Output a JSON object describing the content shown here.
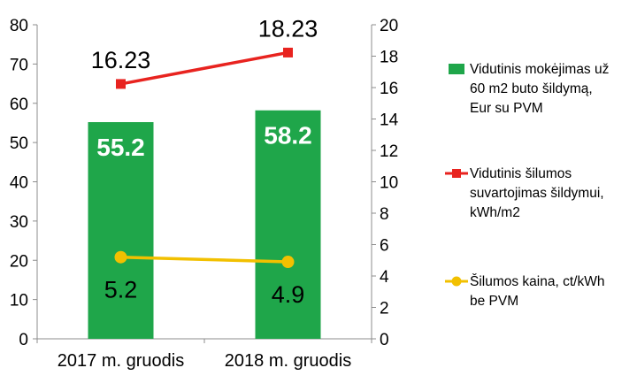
{
  "chart_data": {
    "type": "bar",
    "categories": [
      "2017 m. gruodis",
      "2018 m. gruodis"
    ],
    "series": [
      {
        "name": "Vidutinis mokėjimas už 60 m2 buto šildymą, Eur su PVM",
        "type": "bar",
        "axis": "left",
        "color": "#1fa64a",
        "values": [
          55.2,
          58.2
        ],
        "labels": [
          "55.2",
          "58.2"
        ]
      },
      {
        "name": "Vidutinis šilumos suvartojimas šildymui, kWh/m2",
        "type": "line",
        "axis": "right",
        "color": "#e8231f",
        "marker": "square",
        "values": [
          16.23,
          18.23
        ],
        "labels": [
          "16.23",
          "18.23"
        ]
      },
      {
        "name": "Šilumos kaina, ct/kWh be PVM",
        "type": "line",
        "axis": "right",
        "color": "#f2c000",
        "marker": "circle",
        "values": [
          5.2,
          4.9
        ],
        "labels": [
          "5.2",
          "4.9"
        ]
      }
    ],
    "y_left": {
      "range": [
        0,
        80
      ],
      "ticks": [
        "0",
        "10",
        "20",
        "30",
        "40",
        "50",
        "60",
        "70",
        "80"
      ]
    },
    "y_right": {
      "range": [
        0,
        20
      ],
      "ticks": [
        "0",
        "2",
        "4",
        "6",
        "8",
        "10",
        "12",
        "14",
        "16",
        "18",
        "20"
      ]
    },
    "grid": false,
    "legend_position": "right"
  },
  "legend": [
    {
      "lines": [
        "Vidutinis mokėjimas už",
        "60 m2 buto šildymą,",
        "Eur su PVM"
      ]
    },
    {
      "lines": [
        "Vidutinis šilumos",
        "suvartojimas šildymui,",
        "kWh/m2"
      ]
    },
    {
      "lines": [
        "Šilumos kaina, ct/kWh",
        "be PVM"
      ]
    }
  ]
}
